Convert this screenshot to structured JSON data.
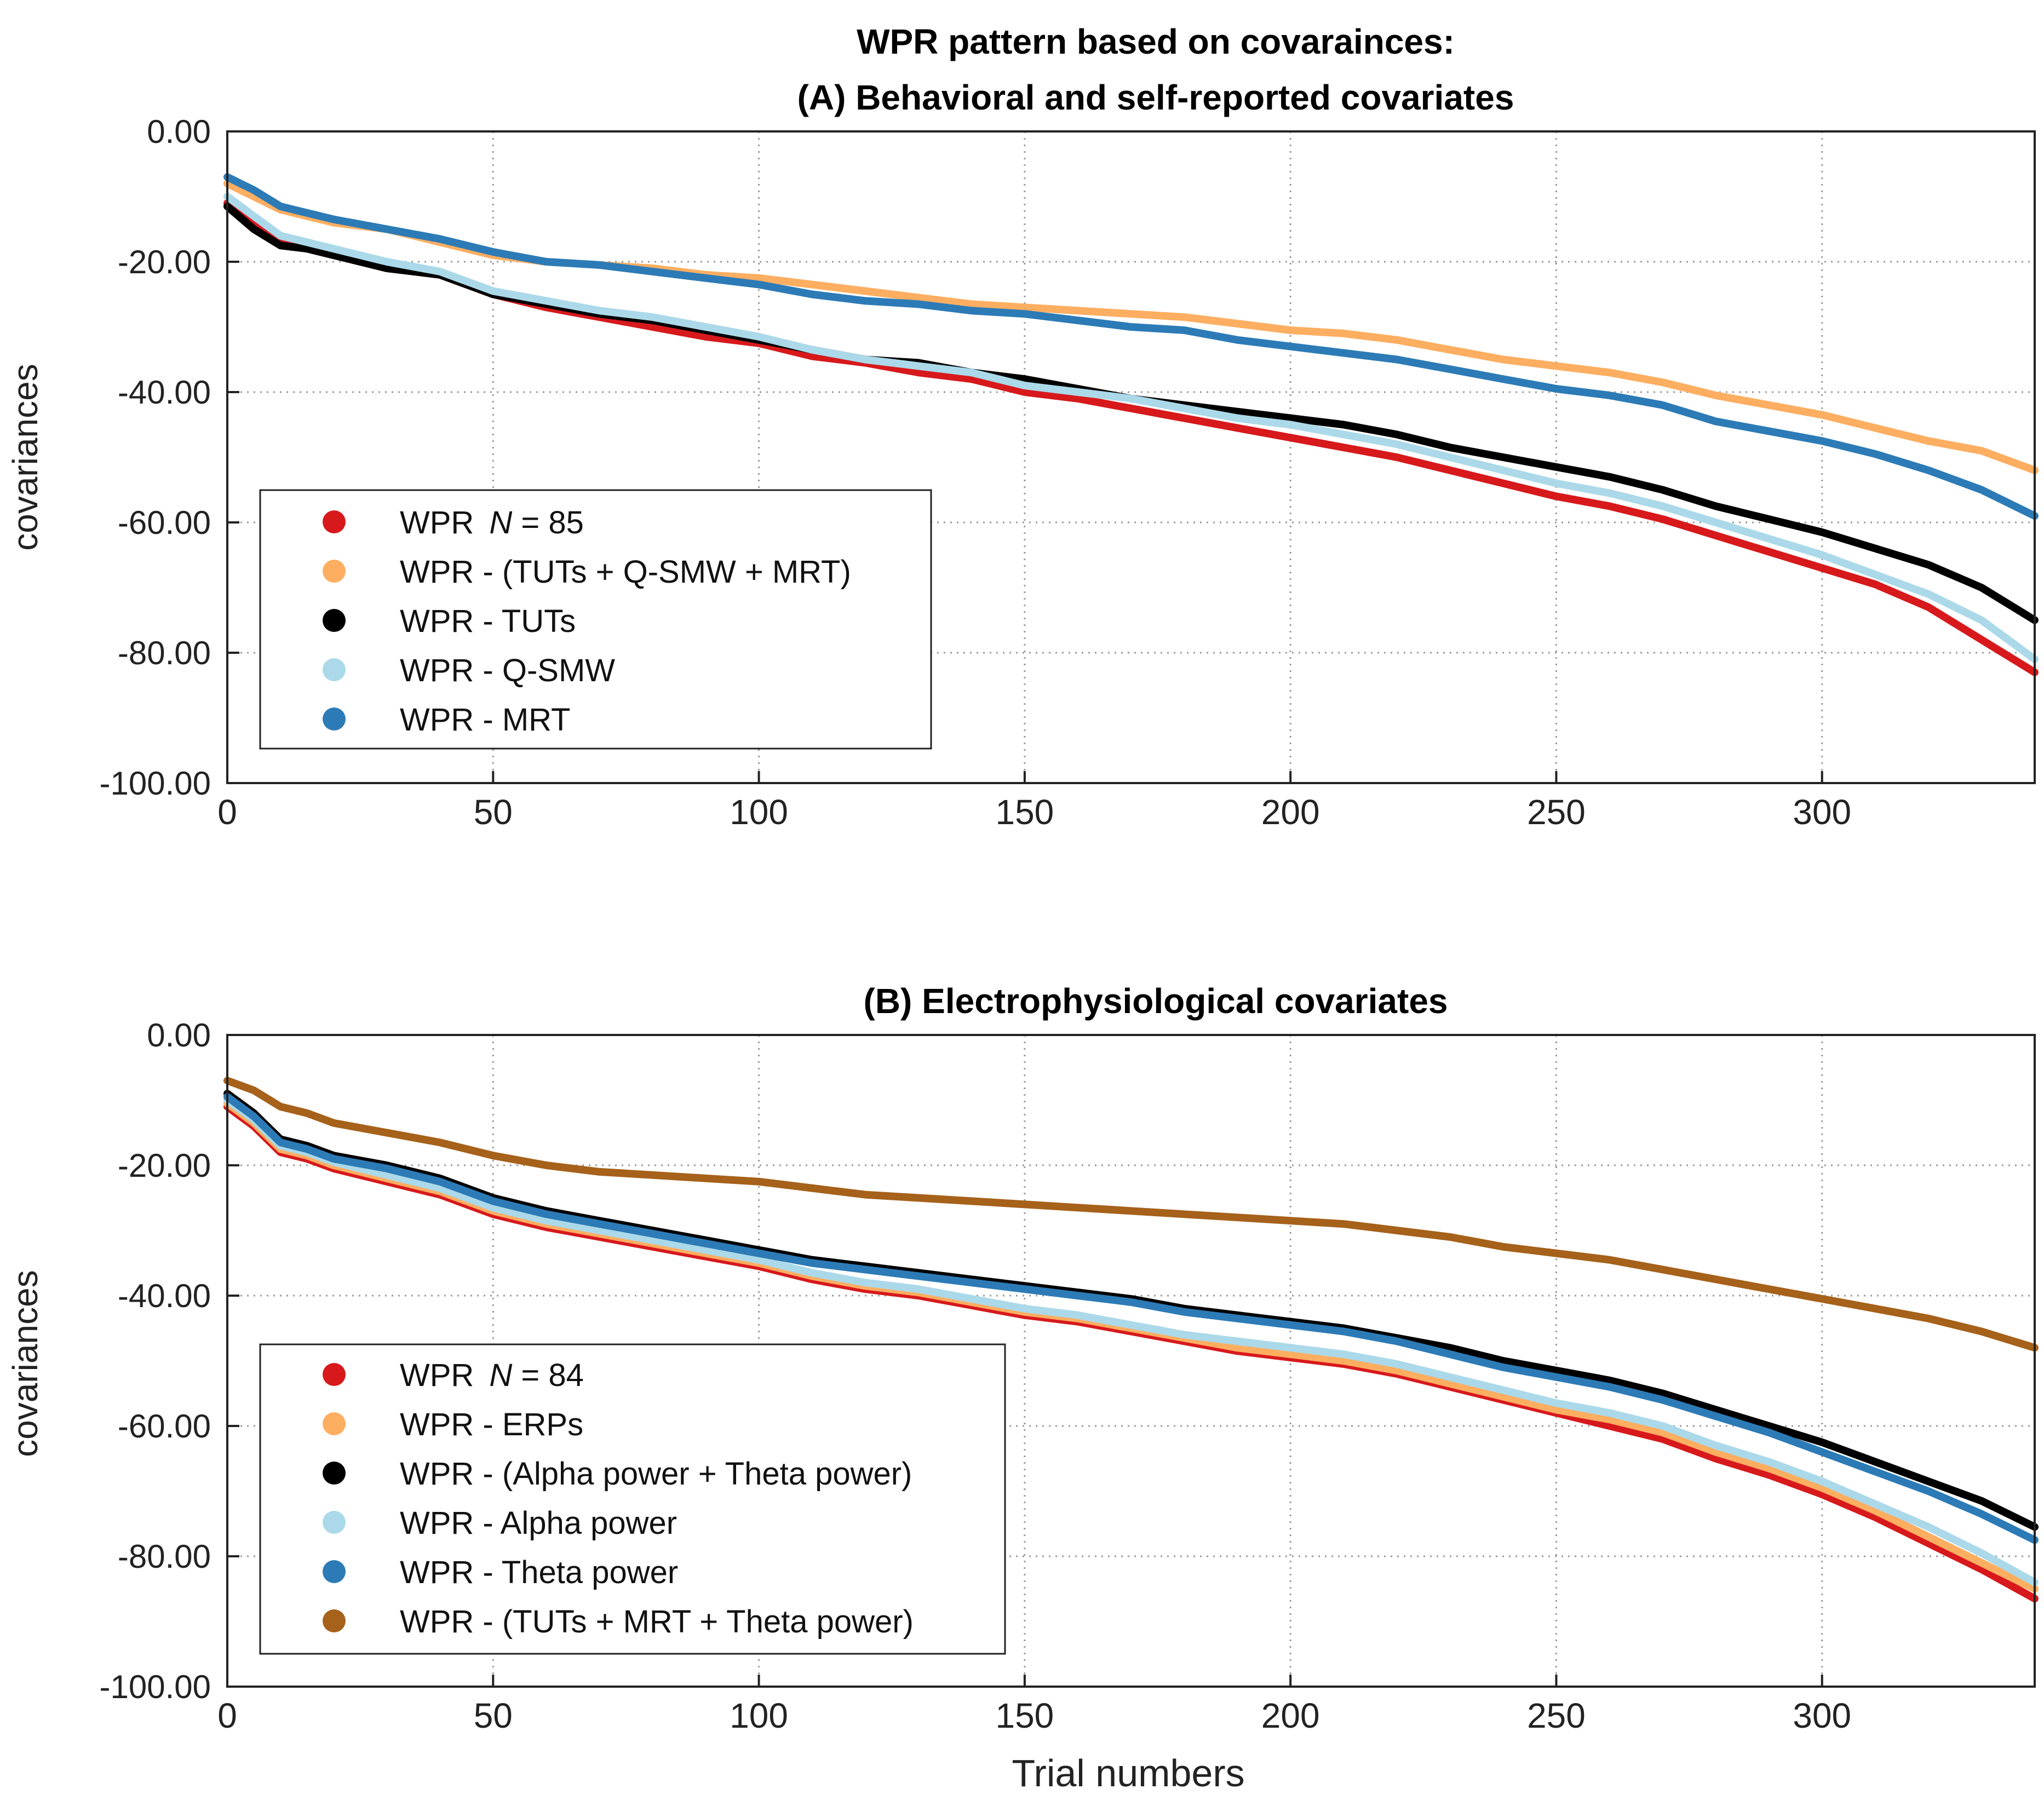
{
  "figure_title": "WPR pattern based on covarainces:",
  "chart_data": [
    {
      "type": "line",
      "title": "(A) Behavioral and self-reported covariates",
      "xlabel": "",
      "ylabel": "covariances",
      "xlim": [
        0,
        340
      ],
      "ylim": [
        -100,
        0
      ],
      "x_ticks": [
        "0",
        "50",
        "100",
        "150",
        "200",
        "250",
        "300"
      ],
      "x_tick_values": [
        0,
        50,
        100,
        150,
        200,
        250,
        300
      ],
      "y_ticks": [
        "0.00",
        "-20.00",
        "-40.00",
        "-60.00",
        "-80.00",
        "-100.00"
      ],
      "y_tick_values": [
        0,
        -20,
        -40,
        -60,
        -80,
        -100
      ],
      "grid": true,
      "legend_position": "lower-left",
      "x": [
        0,
        5,
        10,
        15,
        20,
        30,
        40,
        50,
        60,
        70,
        80,
        90,
        100,
        110,
        120,
        130,
        140,
        150,
        160,
        170,
        180,
        190,
        200,
        210,
        220,
        230,
        240,
        250,
        260,
        270,
        280,
        290,
        300,
        310,
        320,
        330,
        340
      ],
      "series": [
        {
          "name": "WPR",
          "label_prefix": "WPR",
          "label_italic": "N",
          "label_suffix": " = 85",
          "color": "#d7191c",
          "values": [
            -11,
            -14,
            -17,
            -18,
            -19,
            -21,
            -22,
            -25,
            -27,
            -28.5,
            -30,
            -31.5,
            -32.5,
            -34.5,
            -35.5,
            -37,
            -38,
            -40,
            -41,
            -42.5,
            -44,
            -45.5,
            -47,
            -48.5,
            -50,
            -52,
            -54,
            -56,
            -57.5,
            -59.5,
            -62,
            -64.5,
            -67,
            -69.5,
            -73,
            -78,
            -83
          ]
        },
        {
          "name": "WPR - (TUTs + Q-SMW + MRT)",
          "label": "WPR - (TUTs + Q-SMW + MRT)",
          "color": "#fdae61",
          "values": [
            -8,
            -10,
            -12,
            -13,
            -14,
            -15,
            -17,
            -19,
            -20,
            -20.5,
            -21,
            -22,
            -22.5,
            -23.5,
            -24.5,
            -25.5,
            -26.5,
            -27,
            -27.5,
            -28,
            -28.5,
            -29.5,
            -30.5,
            -31,
            -32,
            -33.5,
            -35,
            -36,
            -37,
            -38.5,
            -40.5,
            -42,
            -43.5,
            -45.5,
            -47.5,
            -49,
            -52
          ]
        },
        {
          "name": "WPR - TUTs",
          "label": "WPR - TUTs",
          "color": "#000000",
          "values": [
            -11.5,
            -15,
            -17.5,
            -18,
            -19,
            -21,
            -22,
            -25,
            -26.5,
            -28,
            -29,
            -30.5,
            -32,
            -33.5,
            -35,
            -35.5,
            -37,
            -38,
            -39.5,
            -41,
            -42,
            -43,
            -44,
            -45,
            -46.5,
            -48.5,
            -50,
            -51.5,
            -53,
            -55,
            -57.5,
            -59.5,
            -61.5,
            -64,
            -66.5,
            -70,
            -75
          ]
        },
        {
          "name": "WPR - Q-SMW",
          "label": "WPR - Q-SMW",
          "color": "#abd9e9",
          "values": [
            -10,
            -13,
            -16,
            -17,
            -18,
            -20,
            -21.5,
            -24.5,
            -26,
            -27.5,
            -28.5,
            -30,
            -31.5,
            -33.5,
            -35,
            -36,
            -37,
            -39,
            -40,
            -41,
            -42.5,
            -44,
            -45,
            -46.5,
            -48,
            -50,
            -52,
            -54,
            -55.5,
            -57.5,
            -60,
            -62.5,
            -65,
            -68,
            -71,
            -75,
            -81
          ]
        },
        {
          "name": "WPR - MRT",
          "label": "WPR - MRT",
          "color": "#2c7bb6",
          "values": [
            -7,
            -9,
            -11.5,
            -12.5,
            -13.5,
            -15,
            -16.5,
            -18.5,
            -20,
            -20.5,
            -21.5,
            -22.5,
            -23.5,
            -25,
            -26,
            -26.5,
            -27.5,
            -28,
            -29,
            -30,
            -30.5,
            -32,
            -33,
            -34,
            -35,
            -36.5,
            -38,
            -39.5,
            -40.5,
            -42,
            -44.5,
            -46,
            -47.5,
            -49.5,
            -52,
            -55,
            -59
          ]
        }
      ]
    },
    {
      "type": "line",
      "title": "(B) Electrophysiological covariates",
      "xlabel": "Trial numbers",
      "ylabel": "covariances",
      "xlim": [
        0,
        340
      ],
      "ylim": [
        -100,
        0
      ],
      "x_ticks": [
        "0",
        "50",
        "100",
        "150",
        "200",
        "250",
        "300"
      ],
      "x_tick_values": [
        0,
        50,
        100,
        150,
        200,
        250,
        300
      ],
      "y_ticks": [
        "0.00",
        "-20.00",
        "-40.00",
        "-60.00",
        "-80.00",
        "-100.00"
      ],
      "y_tick_values": [
        0,
        -20,
        -40,
        -60,
        -80,
        -100
      ],
      "grid": true,
      "legend_position": "lower-left",
      "x": [
        0,
        5,
        10,
        15,
        20,
        30,
        40,
        50,
        60,
        70,
        80,
        90,
        100,
        110,
        120,
        130,
        140,
        150,
        160,
        170,
        180,
        190,
        200,
        210,
        220,
        230,
        240,
        250,
        260,
        270,
        280,
        290,
        300,
        310,
        320,
        330,
        340
      ],
      "series": [
        {
          "name": "WPR",
          "label_prefix": "WPR",
          "label_italic": "N",
          "label_suffix": " = 84",
          "color": "#d7191c",
          "values": [
            -11,
            -14,
            -18,
            -19,
            -20.5,
            -22.5,
            -24.5,
            -27.5,
            -29.5,
            -31,
            -32.5,
            -34,
            -35.5,
            -37.5,
            -39,
            -40,
            -41.5,
            -43,
            -44,
            -45.5,
            -47,
            -48.5,
            -49.5,
            -50.5,
            -52,
            -54,
            -56,
            -58,
            -60,
            -62,
            -65,
            -67.5,
            -70.5,
            -74,
            -78,
            -82,
            -86.5
          ]
        },
        {
          "name": "WPR - ERPs",
          "label": "WPR - ERPs",
          "color": "#fdae61",
          "values": [
            -10.5,
            -13.5,
            -17.5,
            -18.5,
            -20,
            -22,
            -24,
            -27,
            -29,
            -30.5,
            -32,
            -33.5,
            -35,
            -37,
            -38.5,
            -39.5,
            -41,
            -42.5,
            -43.5,
            -45,
            -46.5,
            -48,
            -49,
            -50,
            -51.5,
            -53.5,
            -55.5,
            -57.5,
            -59,
            -61,
            -64,
            -66.5,
            -69.5,
            -73,
            -77,
            -81,
            -85
          ]
        },
        {
          "name": "WPR - (Alpha power + Theta power)",
          "label": "WPR - (Alpha power + Theta power)",
          "color": "#000000",
          "values": [
            -9,
            -12,
            -16,
            -17,
            -18.5,
            -20,
            -22,
            -25,
            -27,
            -28.5,
            -30,
            -31.5,
            -33,
            -34.5,
            -35.5,
            -36.5,
            -37.5,
            -38.5,
            -39.5,
            -40.5,
            -42,
            -43,
            -44,
            -45,
            -46.5,
            -48,
            -50,
            -51.5,
            -53,
            -55,
            -57.5,
            -60,
            -62.5,
            -65.5,
            -68.5,
            -71.5,
            -75.5
          ]
        },
        {
          "name": "WPR - Alpha power",
          "label": "WPR - Alpha power",
          "color": "#abd9e9",
          "values": [
            -10,
            -13,
            -17,
            -18,
            -19.5,
            -21.5,
            -23.5,
            -26.5,
            -28.5,
            -30,
            -31.5,
            -33,
            -34.5,
            -36.5,
            -38,
            -39,
            -40.5,
            -42,
            -43,
            -44.5,
            -46,
            -47,
            -48,
            -49,
            -50.5,
            -52.5,
            -54.5,
            -56.5,
            -58,
            -60,
            -63,
            -65.5,
            -68.5,
            -72,
            -75.5,
            -79.5,
            -84
          ]
        },
        {
          "name": "WPR - Theta power",
          "label": "WPR - Theta power",
          "color": "#2c7bb6",
          "values": [
            -9.5,
            -12.5,
            -16.5,
            -17.5,
            -19,
            -20.5,
            -22.5,
            -25.5,
            -27.5,
            -29,
            -30.5,
            -32,
            -33.5,
            -35,
            -36,
            -37,
            -38,
            -39,
            -40,
            -41,
            -42.5,
            -43.5,
            -44.5,
            -45.5,
            -47,
            -49,
            -51,
            -52.5,
            -54,
            -56,
            -58.5,
            -61,
            -64,
            -67,
            -70,
            -73.5,
            -77.5
          ]
        },
        {
          "name": "WPR - (TUTs + MRT + Theta power)",
          "label": "WPR - (TUTs + MRT + Theta power)",
          "color": "#a6611a",
          "values": [
            -7,
            -8.5,
            -11,
            -12,
            -13.5,
            -15,
            -16.5,
            -18.5,
            -20,
            -21,
            -21.5,
            -22,
            -22.5,
            -23.5,
            -24.5,
            -25,
            -25.5,
            -26,
            -26.5,
            -27,
            -27.5,
            -28,
            -28.5,
            -29,
            -30,
            -31,
            -32.5,
            -33.5,
            -34.5,
            -36,
            -37.5,
            -39,
            -40.5,
            -42,
            -43.5,
            -45.5,
            -48
          ]
        }
      ]
    }
  ]
}
